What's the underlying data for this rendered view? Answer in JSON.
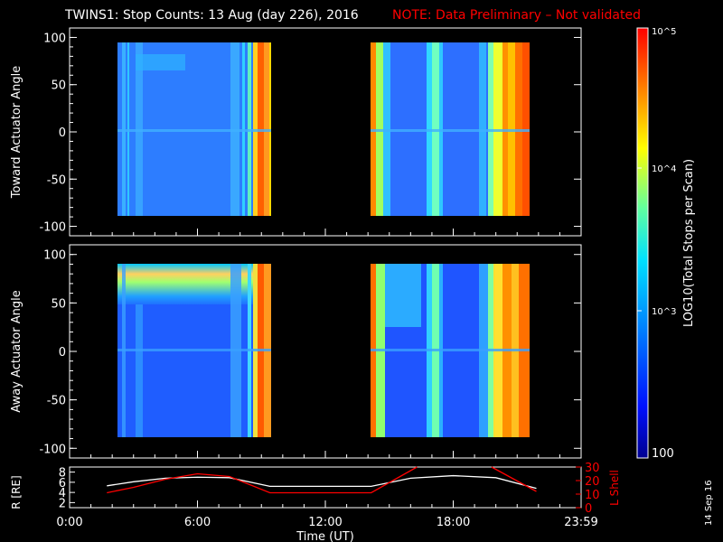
{
  "title": "TWINS1: Stop Counts: 13 Aug (day 226), 2016",
  "note": "NOTE: Data Preliminary – Not validated",
  "date_stamp": "14 Sep 16",
  "chart_data": [
    {
      "type": "heatmap",
      "ylabel": "Toward Actuator Angle",
      "ylim": [
        -110,
        110
      ],
      "yticks": [
        100,
        50,
        0,
        -50,
        -100
      ],
      "xlim": [
        0,
        24
      ],
      "blocks": [
        {
          "x_start": 1.75,
          "x_end": 9.4,
          "y_start": -88,
          "y_end": 90
        },
        {
          "x_start": 14.15,
          "x_end": 21.9,
          "y_start": -88,
          "y_end": 90
        }
      ]
    },
    {
      "type": "heatmap",
      "ylabel": "Away Actuator Angle",
      "ylim": [
        -110,
        110
      ],
      "yticks": [
        100,
        50,
        0,
        -50,
        -100
      ],
      "xlim": [
        0,
        24
      ],
      "blocks": [
        {
          "x_start": 1.75,
          "x_end": 9.4,
          "y_start": -88,
          "y_end": 90
        },
        {
          "x_start": 14.15,
          "x_end": 21.9,
          "y_start": -88,
          "y_end": 90
        }
      ]
    },
    {
      "type": "line",
      "ylabel": "R [RE]",
      "y2label": "L Shell",
      "xlabel": "Time (UT)",
      "xticks": [
        "0:00",
        "6:00",
        "12:00",
        "18:00",
        "23:59"
      ],
      "xlim": [
        0,
        24
      ],
      "ylim": [
        1,
        9
      ],
      "yticks": [
        2,
        4,
        6,
        8
      ],
      "y2lim": [
        0,
        30
      ],
      "y2ticks": [
        0,
        10,
        20,
        30
      ],
      "series": [
        {
          "name": "R [RE]",
          "color": "#ffffff",
          "x": [
            1.75,
            3,
            4.5,
            6,
            7.5,
            9.4,
            12,
            14.15,
            16,
            18,
            20,
            21.9
          ],
          "y": [
            5.3,
            6.1,
            6.8,
            7.0,
            6.9,
            5.2,
            5.2,
            5.2,
            6.8,
            7.3,
            6.9,
            4.8
          ]
        },
        {
          "name": "L Shell",
          "color": "#ff0000",
          "x": [
            1.75,
            3,
            4.5,
            6,
            7.5,
            9.4,
            12,
            14.15,
            16.3
          ],
          "y": [
            11,
            15,
            21,
            25,
            23,
            11,
            11,
            11,
            30
          ]
        },
        {
          "name": "L Shell (post)",
          "color": "#ff0000",
          "x": [
            19.8,
            21.9
          ],
          "y": [
            30,
            12
          ]
        }
      ]
    }
  ],
  "colorbar": {
    "label": "LOG10(Total Stops per Scan)",
    "ticks": [
      "10^5",
      "10^4",
      "10^3",
      "100"
    ],
    "min_value": 100,
    "max_value": 100000,
    "colors": [
      "#000090",
      "#0010ff",
      "#0080ff",
      "#00e0ff",
      "#60ffa0",
      "#ffff00",
      "#ff8000",
      "#ff0000"
    ]
  }
}
